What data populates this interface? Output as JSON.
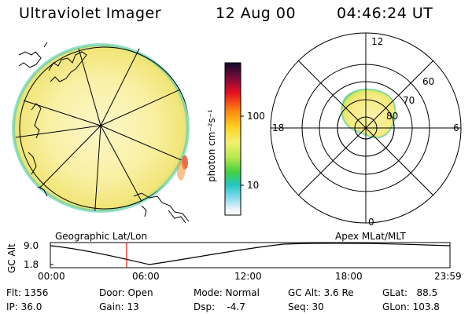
{
  "header": {
    "app_title": "Ultraviolet Imager",
    "date": "12 Aug 00",
    "time": "04:46:24 UT"
  },
  "colorbar": {
    "unit_label": "photon cm⁻²s⁻¹",
    "ticks": [
      "100",
      "10"
    ]
  },
  "polar_plot": {
    "mlt_labels": {
      "top": "12",
      "left": "18",
      "right": "6",
      "bottom": "0"
    },
    "lat_labels": [
      "60",
      "70",
      "80"
    ]
  },
  "map_labels": {
    "left": "Geographic Lat/Lon",
    "right": "Apex MLat/MLT"
  },
  "altitude_plot": {
    "ylabel": "GC Alt",
    "yticks": [
      "9.0",
      "1.8"
    ],
    "xticks": [
      "00:00",
      "06:00",
      "12:00",
      "18:00",
      "23:59"
    ]
  },
  "info": {
    "flt": "Flt: 1356",
    "ip": "IP: 36.0",
    "door": "Door: Open",
    "gain": "Gain: 13",
    "mode": "Mode: Normal",
    "dsp": "Dsp:    -4.7",
    "gc_alt": "GC Alt: 3.6 Re",
    "seq": "Seq: 30",
    "glat": "GLat:   88.5",
    "glon": "GLon: 103.8"
  }
}
